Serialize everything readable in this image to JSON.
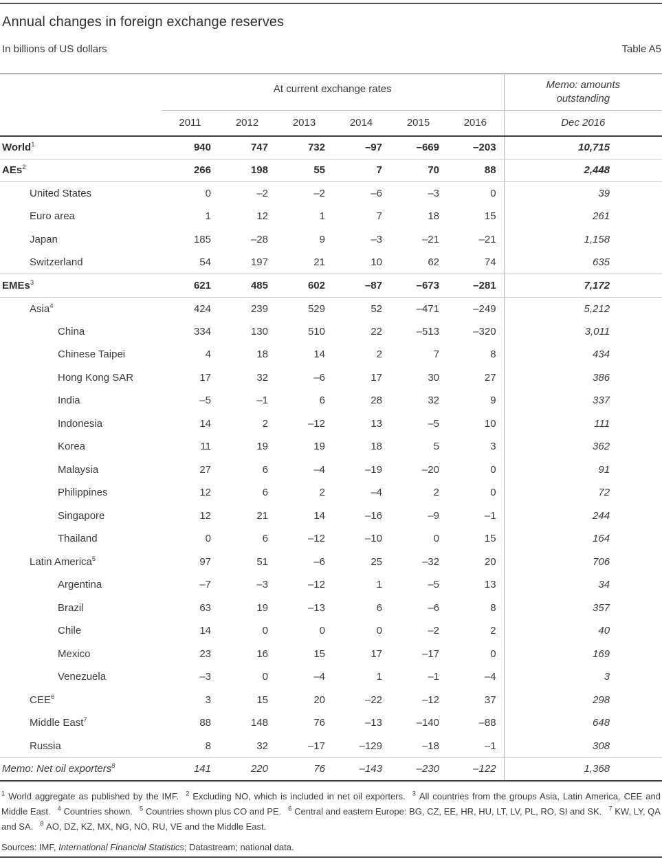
{
  "title": "Annual changes in foreign exchange reserves",
  "subtitle": "In billions of US dollars",
  "table_label": "Table A5",
  "header": {
    "group": "At current exchange rates",
    "memo_group": "Memo: amounts outstanding",
    "years": [
      "2011",
      "2012",
      "2013",
      "2014",
      "2015",
      "2016"
    ],
    "memo_col": "Dec 2016"
  },
  "rows": [
    {
      "label": "World",
      "sup": "1",
      "indent": 0,
      "emphasis": "bold",
      "values": [
        "940",
        "747",
        "732",
        "–97",
        "–669",
        "–203"
      ],
      "memo": "10,715"
    },
    {
      "label": "AEs",
      "sup": "2",
      "indent": 0,
      "emphasis": "bold",
      "values": [
        "266",
        "198",
        "55",
        "7",
        "70",
        "88"
      ],
      "memo": "2,448"
    },
    {
      "label": "United States",
      "sup": "",
      "indent": 1,
      "emphasis": "normal",
      "values": [
        "0",
        "–2",
        "–2",
        "–6",
        "–3",
        "0"
      ],
      "memo": "39"
    },
    {
      "label": "Euro area",
      "sup": "",
      "indent": 1,
      "emphasis": "normal",
      "values": [
        "1",
        "12",
        "1",
        "7",
        "18",
        "15"
      ],
      "memo": "261"
    },
    {
      "label": "Japan",
      "sup": "",
      "indent": 1,
      "emphasis": "normal",
      "values": [
        "185",
        "–28",
        "9",
        "–3",
        "–21",
        "–21"
      ],
      "memo": "1,158"
    },
    {
      "label": "Switzerland",
      "sup": "",
      "indent": 1,
      "emphasis": "normal",
      "values": [
        "54",
        "197",
        "21",
        "10",
        "62",
        "74"
      ],
      "memo": "635"
    },
    {
      "label": "EMEs",
      "sup": "3",
      "indent": 0,
      "emphasis": "bold",
      "values": [
        "621",
        "485",
        "602",
        "–87",
        "–673",
        "–281"
      ],
      "memo": "7,172"
    },
    {
      "label": "Asia",
      "sup": "4",
      "indent": 1,
      "emphasis": "normal",
      "values": [
        "424",
        "239",
        "529",
        "52",
        "–471",
        "–249"
      ],
      "memo": "5,212"
    },
    {
      "label": "China",
      "sup": "",
      "indent": 2,
      "emphasis": "normal",
      "values": [
        "334",
        "130",
        "510",
        "22",
        "–513",
        "–320"
      ],
      "memo": "3,011"
    },
    {
      "label": "Chinese Taipei",
      "sup": "",
      "indent": 2,
      "emphasis": "normal",
      "values": [
        "4",
        "18",
        "14",
        "2",
        "7",
        "8"
      ],
      "memo": "434"
    },
    {
      "label": "Hong Kong SAR",
      "sup": "",
      "indent": 2,
      "emphasis": "normal",
      "values": [
        "17",
        "32",
        "–6",
        "17",
        "30",
        "27"
      ],
      "memo": "386"
    },
    {
      "label": "India",
      "sup": "",
      "indent": 2,
      "emphasis": "normal",
      "values": [
        "–5",
        "–1",
        "6",
        "28",
        "32",
        "9"
      ],
      "memo": "337"
    },
    {
      "label": "Indonesia",
      "sup": "",
      "indent": 2,
      "emphasis": "normal",
      "values": [
        "14",
        "2",
        "–12",
        "13",
        "–5",
        "10"
      ],
      "memo": "111"
    },
    {
      "label": "Korea",
      "sup": "",
      "indent": 2,
      "emphasis": "normal",
      "values": [
        "11",
        "19",
        "19",
        "18",
        "5",
        "3"
      ],
      "memo": "362"
    },
    {
      "label": "Malaysia",
      "sup": "",
      "indent": 2,
      "emphasis": "normal",
      "values": [
        "27",
        "6",
        "–4",
        "–19",
        "–20",
        "0"
      ],
      "memo": "91"
    },
    {
      "label": "Philippines",
      "sup": "",
      "indent": 2,
      "emphasis": "normal",
      "values": [
        "12",
        "6",
        "2",
        "–4",
        "2",
        "0"
      ],
      "memo": "72"
    },
    {
      "label": "Singapore",
      "sup": "",
      "indent": 2,
      "emphasis": "normal",
      "values": [
        "12",
        "21",
        "14",
        "–16",
        "–9",
        "–1"
      ],
      "memo": "244"
    },
    {
      "label": "Thailand",
      "sup": "",
      "indent": 2,
      "emphasis": "normal",
      "values": [
        "0",
        "6",
        "–12",
        "–10",
        "0",
        "15"
      ],
      "memo": "164"
    },
    {
      "label": "Latin America",
      "sup": "5",
      "indent": 1,
      "emphasis": "normal",
      "values": [
        "97",
        "51",
        "–6",
        "25",
        "–32",
        "20"
      ],
      "memo": "706"
    },
    {
      "label": "Argentina",
      "sup": "",
      "indent": 2,
      "emphasis": "normal",
      "values": [
        "–7",
        "–3",
        "–12",
        "1",
        "–5",
        "13"
      ],
      "memo": "34"
    },
    {
      "label": "Brazil",
      "sup": "",
      "indent": 2,
      "emphasis": "normal",
      "values": [
        "63",
        "19",
        "–13",
        "6",
        "–6",
        "8"
      ],
      "memo": "357"
    },
    {
      "label": "Chile",
      "sup": "",
      "indent": 2,
      "emphasis": "normal",
      "values": [
        "14",
        "0",
        "0",
        "0",
        "–2",
        "2"
      ],
      "memo": "40"
    },
    {
      "label": "Mexico",
      "sup": "",
      "indent": 2,
      "emphasis": "normal",
      "values": [
        "23",
        "16",
        "15",
        "17",
        "–17",
        "0"
      ],
      "memo": "169"
    },
    {
      "label": "Venezuela",
      "sup": "",
      "indent": 2,
      "emphasis": "normal",
      "values": [
        "–3",
        "0",
        "–4",
        "1",
        "–1",
        "–4"
      ],
      "memo": "3"
    },
    {
      "label": "CEE",
      "sup": "6",
      "indent": 1,
      "emphasis": "normal",
      "values": [
        "3",
        "15",
        "20",
        "–22",
        "–12",
        "37"
      ],
      "memo": "298"
    },
    {
      "label": "Middle East",
      "sup": "7",
      "indent": 1,
      "emphasis": "normal",
      "values": [
        "88",
        "148",
        "76",
        "–13",
        "–140",
        "–88"
      ],
      "memo": "648"
    },
    {
      "label": "Russia",
      "sup": "",
      "indent": 1,
      "emphasis": "normal",
      "values": [
        "8",
        "32",
        "–17",
        "–129",
        "–18",
        "–1"
      ],
      "memo": "308"
    },
    {
      "label": "Memo: Net oil exporters",
      "sup": "8",
      "indent": 0,
      "emphasis": "italic",
      "values": [
        "141",
        "220",
        "76",
        "–143",
        "–230",
        "–122"
      ],
      "memo": "1,368"
    }
  ],
  "footnotes": [
    {
      "sup": "1",
      "text": "World aggregate as published by the IMF."
    },
    {
      "sup": "2",
      "text": "Excluding NO, which is included in net oil exporters."
    },
    {
      "sup": "3",
      "text": "All countries from the groups Asia, Latin America, CEE and Middle East."
    },
    {
      "sup": "4",
      "text": "Countries shown."
    },
    {
      "sup": "5",
      "text": "Countries shown plus CO and PE."
    },
    {
      "sup": "6",
      "text": "Central and eastern Europe: BG, CZ, EE, HR, HU, LT, LV, PL, RO, SI and SK."
    },
    {
      "sup": "7",
      "text": "KW, LY, QA and SA."
    },
    {
      "sup": "8",
      "text": "AO, DZ, KZ, MX, NG, NO, RU, VE and the Middle East."
    }
  ],
  "sources": {
    "pre": "Sources: IMF, ",
    "italic": "International Financial Statistics",
    "post": "; Datastream; national data."
  }
}
